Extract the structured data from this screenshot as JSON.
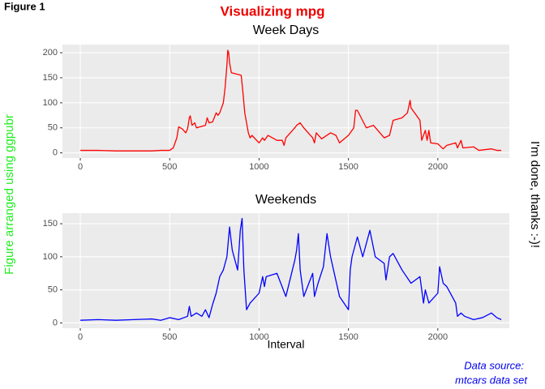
{
  "figure_label": "Figure 1",
  "title": "Visualizing mpg",
  "left_label": "Figure arranged using ggpubr",
  "right_label": "I'm done, thanks :-)!",
  "caption_line1": "Data source:",
  "caption_line2": "mtcars data set",
  "chart_data": [
    {
      "type": "line",
      "title": "Week Days",
      "x": [
        0,
        100,
        200,
        300,
        400,
        450,
        500,
        520,
        540,
        550,
        570,
        590,
        600,
        610,
        615,
        625,
        640,
        650,
        700,
        710,
        720,
        740,
        760,
        770,
        780,
        800,
        810,
        820,
        825,
        830,
        835,
        845,
        900,
        910,
        920,
        930,
        940,
        950,
        960,
        1000,
        1020,
        1030,
        1050,
        1100,
        1130,
        1140,
        1150,
        1200,
        1210,
        1230,
        1250,
        1300,
        1310,
        1320,
        1350,
        1400,
        1430,
        1450,
        1500,
        1530,
        1540,
        1550,
        1600,
        1640,
        1700,
        1730,
        1750,
        1800,
        1830,
        1845,
        1850,
        1900,
        1910,
        1930,
        1940,
        1950,
        1960,
        2000,
        2030,
        2050,
        2100,
        2110,
        2130,
        2140,
        2200,
        2230,
        2300,
        2330,
        2355
      ],
      "series": [
        {
          "color": "#ff0000",
          "values": [
            5,
            5,
            4,
            4,
            4,
            5,
            5,
            10,
            30,
            52,
            48,
            40,
            48,
            70,
            74,
            55,
            60,
            50,
            55,
            70,
            60,
            62,
            80,
            75,
            80,
            100,
            130,
            175,
            205,
            200,
            180,
            160,
            155,
            120,
            80,
            60,
            40,
            30,
            35,
            20,
            30,
            25,
            35,
            25,
            25,
            15,
            30,
            50,
            55,
            60,
            50,
            30,
            20,
            40,
            28,
            40,
            35,
            20,
            35,
            50,
            85,
            85,
            50,
            55,
            30,
            35,
            65,
            70,
            80,
            105,
            90,
            65,
            25,
            45,
            25,
            45,
            20,
            18,
            8,
            15,
            20,
            10,
            25,
            10,
            12,
            5,
            8,
            5,
            5
          ]
        }
      ],
      "xlim": [
        -100,
        2400
      ],
      "xticks": [
        0,
        500,
        1000,
        1500,
        2000
      ],
      "ylim": [
        -10.3,
        216.3
      ],
      "yticks": [
        0,
        50,
        100,
        150,
        200
      ],
      "grid": true
    },
    {
      "type": "line",
      "title": "Weekends",
      "xlabel": "Interval",
      "x": [
        0,
        100,
        200,
        300,
        400,
        450,
        500,
        550,
        600,
        610,
        620,
        650,
        680,
        700,
        720,
        740,
        760,
        780,
        800,
        820,
        835,
        850,
        880,
        895,
        905,
        915,
        930,
        950,
        1000,
        1020,
        1030,
        1040,
        1100,
        1150,
        1200,
        1210,
        1220,
        1230,
        1250,
        1300,
        1310,
        1330,
        1360,
        1380,
        1400,
        1450,
        1500,
        1510,
        1520,
        1550,
        1580,
        1620,
        1650,
        1700,
        1710,
        1730,
        1750,
        1800,
        1850,
        1900,
        1920,
        1930,
        1950,
        2000,
        2010,
        2030,
        2050,
        2100,
        2110,
        2130,
        2150,
        2200,
        2250,
        2300,
        2330,
        2355
      ],
      "series": [
        {
          "color": "#0000ff",
          "values": [
            4,
            5,
            4,
            5,
            6,
            4,
            8,
            5,
            10,
            25,
            10,
            15,
            10,
            20,
            8,
            28,
            45,
            70,
            80,
            100,
            145,
            110,
            80,
            140,
            158,
            80,
            20,
            30,
            45,
            70,
            55,
            70,
            75,
            40,
            95,
            110,
            135,
            80,
            40,
            75,
            40,
            60,
            85,
            135,
            100,
            40,
            20,
            80,
            100,
            130,
            100,
            140,
            100,
            90,
            65,
            100,
            105,
            80,
            60,
            70,
            30,
            50,
            30,
            45,
            85,
            60,
            55,
            30,
            10,
            15,
            10,
            5,
            8,
            15,
            8,
            5
          ]
        }
      ],
      "xlim": [
        -100,
        2400
      ],
      "xticks": [
        0,
        500,
        1000,
        1500,
        2000
      ],
      "ylim": [
        -8,
        166
      ],
      "yticks": [
        0,
        50,
        100,
        150
      ],
      "grid": true
    }
  ]
}
